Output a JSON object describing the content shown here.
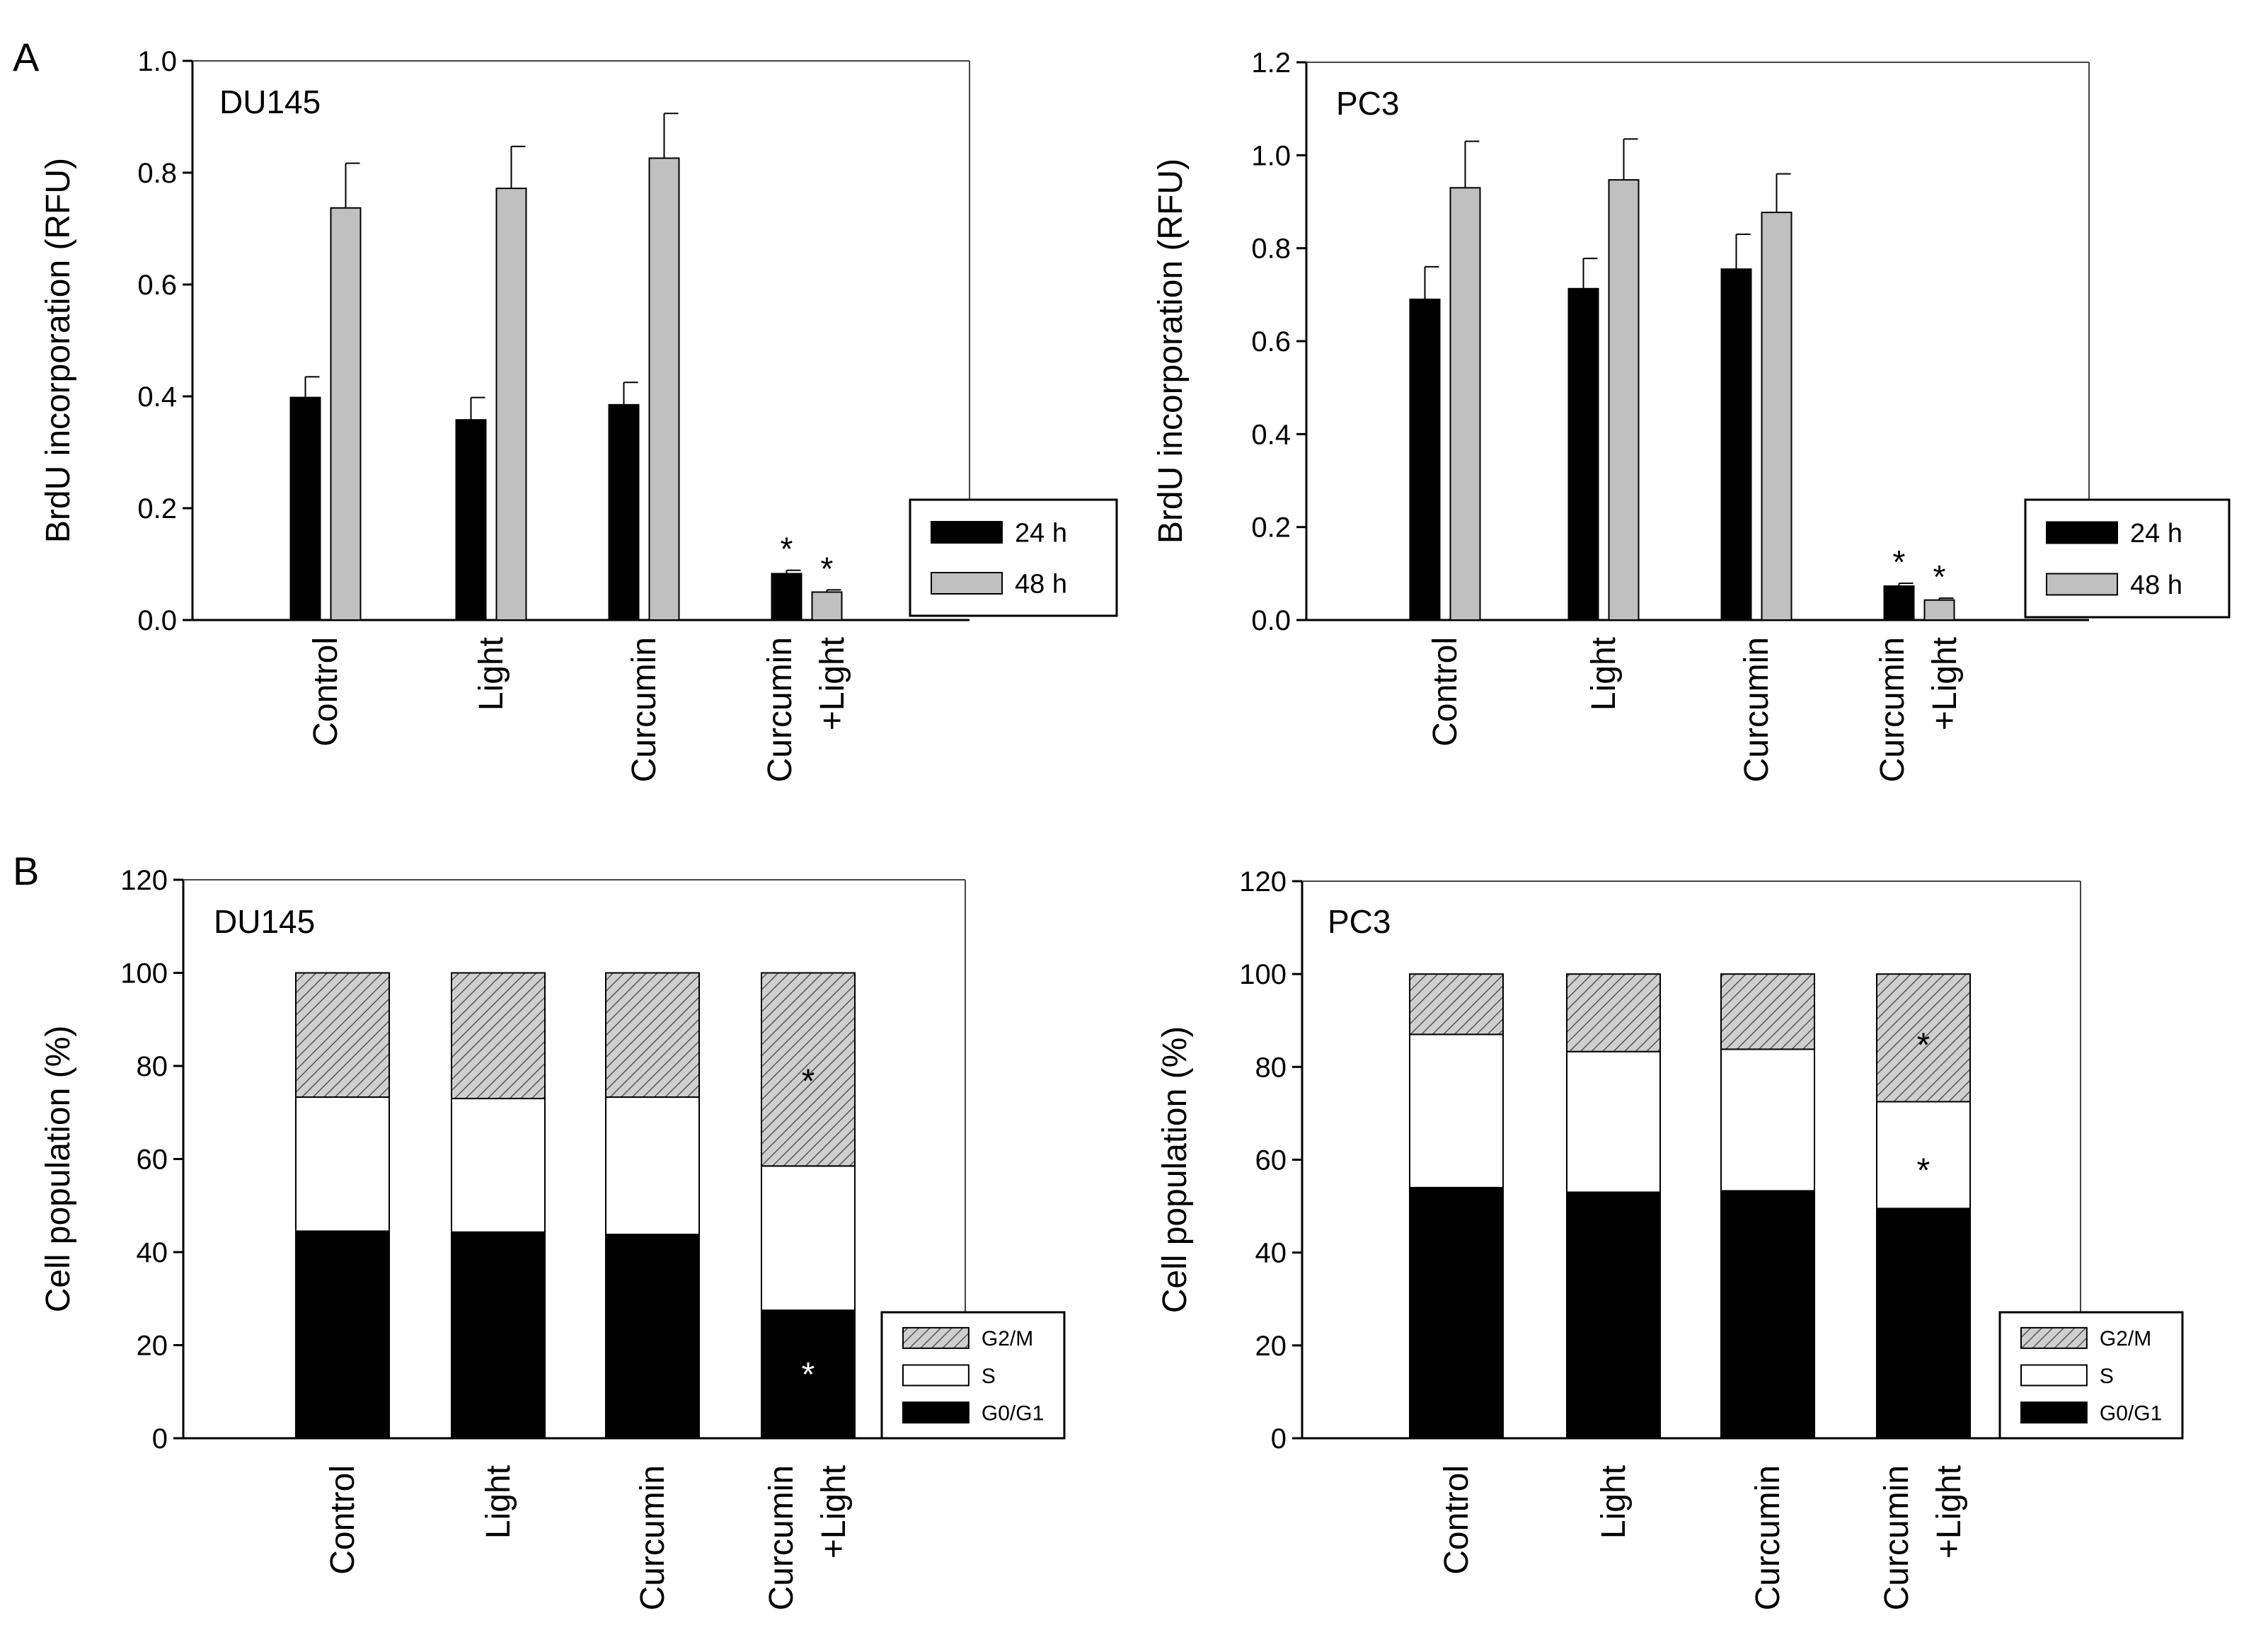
{
  "panel_labels": [
    "A",
    "B"
  ],
  "colors": {
    "h24": "#000000",
    "h48": "#c0c0c0",
    "g0g1": "#000000",
    "s": "#ffffff",
    "g2m": "#c8c8c8"
  },
  "chart_data": [
    {
      "type": "bar",
      "panel": "A",
      "title": "DU145",
      "ylabel": "BrdU incorporation (RFU)",
      "ylim": [
        0,
        1.0
      ],
      "yticks": [
        "0.0",
        "0.2",
        "0.4",
        "0.6",
        "0.8",
        "1.0"
      ],
      "categories": [
        "Control",
        "Light",
        "Curcumin",
        "Curcumin\n+Light"
      ],
      "category_lines": [
        [
          "Control"
        ],
        [
          "Light"
        ],
        [
          "Curcumin"
        ],
        [
          "Curcumin",
          "+Light"
        ]
      ],
      "series": [
        {
          "name": "24 h",
          "values": [
            0.398,
            0.358,
            0.385,
            0.083
          ],
          "errors": [
            0.037,
            0.04,
            0.04,
            0.006
          ],
          "color": "#000000"
        },
        {
          "name": "48 h",
          "values": [
            0.737,
            0.772,
            0.826,
            0.05
          ],
          "errors": [
            0.08,
            0.075,
            0.08,
            0.004
          ],
          "color": "#c0c0c0"
        }
      ],
      "annotations": [
        {
          "category": 3,
          "series": 0,
          "text": "*"
        },
        {
          "category": 3,
          "series": 1,
          "text": "*"
        }
      ],
      "legend": {
        "position": "bottom-right",
        "entries": [
          "24 h",
          "48 h"
        ]
      }
    },
    {
      "type": "bar",
      "panel": "A",
      "title": "PC3",
      "ylabel": "BrdU incorporation (RFU)",
      "ylim": [
        0,
        1.2
      ],
      "yticks": [
        "0.0",
        "0.2",
        "0.4",
        "0.6",
        "0.8",
        "1.0",
        "1.2"
      ],
      "categories": [
        "Control",
        "Light",
        "Curcumin",
        "Curcumin\n+Light"
      ],
      "category_lines": [
        [
          "Control"
        ],
        [
          "Light"
        ],
        [
          "Curcumin"
        ],
        [
          "Curcumin",
          "+Light"
        ]
      ],
      "series": [
        {
          "name": "24 h",
          "values": [
            0.69,
            0.713,
            0.755,
            0.073
          ],
          "errors": [
            0.07,
            0.065,
            0.075,
            0.006
          ],
          "color": "#000000"
        },
        {
          "name": "48 h",
          "values": [
            0.93,
            0.947,
            0.877,
            0.043
          ],
          "errors": [
            0.1,
            0.088,
            0.083,
            0.004
          ],
          "color": "#c0c0c0"
        }
      ],
      "annotations": [
        {
          "category": 3,
          "series": 0,
          "text": "*"
        },
        {
          "category": 3,
          "series": 1,
          "text": "*"
        }
      ],
      "legend": {
        "position": "bottom-right",
        "entries": [
          "24 h",
          "48 h"
        ]
      }
    },
    {
      "type": "stacked-bar",
      "panel": "B",
      "title": "DU145",
      "ylabel": "Cell population (%)",
      "ylim": [
        0,
        120
      ],
      "yticks": [
        "0",
        "20",
        "40",
        "60",
        "80",
        "100",
        "120"
      ],
      "categories": [
        "Control",
        "Light",
        "Curcumin",
        "Curcumin\n+Light"
      ],
      "category_lines": [
        [
          "Control"
        ],
        [
          "Light"
        ],
        [
          "Curcumin"
        ],
        [
          "Curcumin",
          "+Light"
        ]
      ],
      "series": [
        {
          "name": "G0/G1",
          "values": [
            44.5,
            44.3,
            43.8,
            27.5
          ],
          "fill": "solid-black"
        },
        {
          "name": "S",
          "values": [
            28.8,
            28.7,
            29.5,
            31.0
          ],
          "fill": "white"
        },
        {
          "name": "G2/M",
          "values": [
            26.7,
            27.0,
            26.7,
            41.5
          ],
          "fill": "hatched-gray"
        }
      ],
      "annotations": [
        {
          "category": 3,
          "segment": "G0/G1",
          "text": "*",
          "at": 14
        },
        {
          "category": 3,
          "segment": "G2/M",
          "text": "*",
          "at": 77
        }
      ],
      "legend": {
        "position": "bottom-right",
        "entries": [
          "G2/M",
          "S",
          "G0/G1"
        ]
      }
    },
    {
      "type": "stacked-bar",
      "panel": "B",
      "title": "PC3",
      "ylabel": "Cell population (%)",
      "ylim": [
        0,
        120
      ],
      "yticks": [
        "0",
        "20",
        "40",
        "60",
        "80",
        "100",
        "120"
      ],
      "categories": [
        "Control",
        "Light",
        "Curcumin",
        "Curcumin\n+Light"
      ],
      "category_lines": [
        [
          "Control"
        ],
        [
          "Light"
        ],
        [
          "Curcumin"
        ],
        [
          "Curcumin",
          "+Light"
        ]
      ],
      "series": [
        {
          "name": "G0/G1",
          "values": [
            54.0,
            53.0,
            53.3,
            49.5
          ],
          "fill": "solid-black"
        },
        {
          "name": "S",
          "values": [
            33.0,
            30.3,
            30.5,
            23.0
          ],
          "fill": "white"
        },
        {
          "name": "G2/M",
          "values": [
            13.0,
            16.7,
            16.2,
            27.5
          ],
          "fill": "hatched-gray"
        }
      ],
      "annotations": [
        {
          "category": 3,
          "segment": "S",
          "text": "*",
          "at": 58
        },
        {
          "category": 3,
          "segment": "G2/M",
          "text": "*",
          "at": 85
        }
      ],
      "legend": {
        "position": "bottom-right",
        "entries": [
          "G2/M",
          "S",
          "G0/G1"
        ]
      }
    }
  ]
}
